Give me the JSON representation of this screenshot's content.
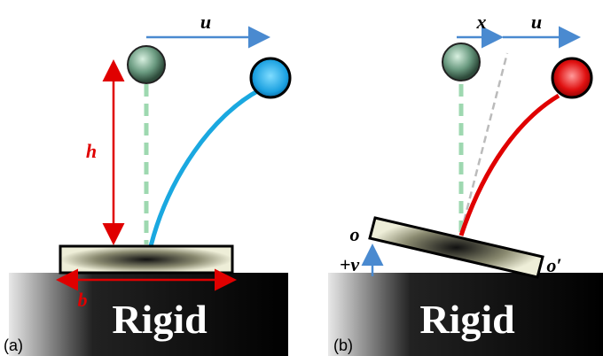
{
  "panel_a": {
    "velocity": "u",
    "height": "h",
    "width": "b",
    "base": "Rigid",
    "label": "(a)"
  },
  "panel_b": {
    "offset": "x",
    "velocity": "u",
    "corner_left": "o",
    "displacement": "+v",
    "corner_right": "o′",
    "base": "Rigid",
    "label": "(b)"
  }
}
